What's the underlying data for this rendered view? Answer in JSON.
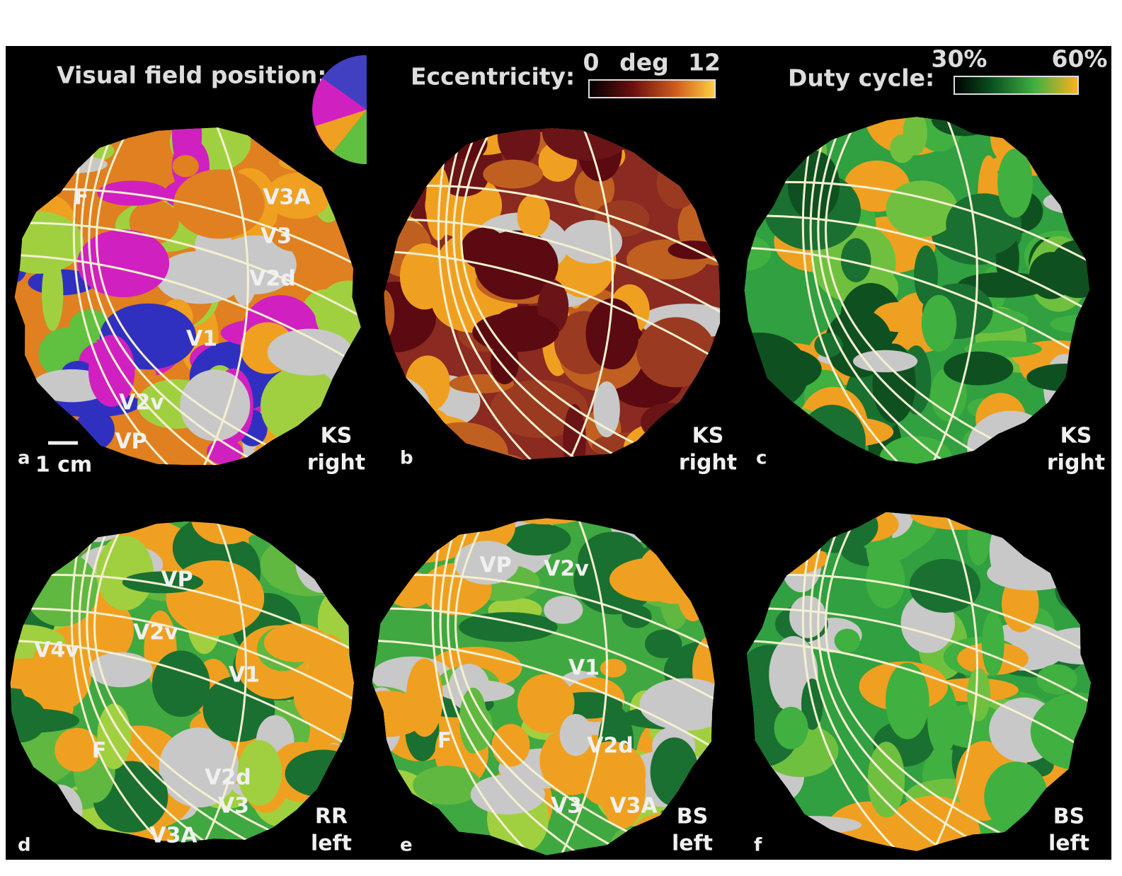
{
  "legends": {
    "position": {
      "title": "Visual field position:"
    },
    "eccentricity": {
      "title": "Eccentricity:",
      "min": "0",
      "unit": "deg",
      "max": "12"
    },
    "duty": {
      "title": "Duty cycle:",
      "min": "30%",
      "max": "60%"
    }
  },
  "panels": [
    {
      "letter": "a",
      "subject": "KS",
      "hemisphere": "right",
      "areas": [
        "F",
        "V3A",
        "V3",
        "V2d",
        "V1",
        "V2v",
        "VP"
      ],
      "scale": "1 cm"
    },
    {
      "letter": "b",
      "subject": "KS",
      "hemisphere": "right",
      "areas": []
    },
    {
      "letter": "c",
      "subject": "KS",
      "hemisphere": "right",
      "areas": []
    },
    {
      "letter": "d",
      "subject": "RR",
      "hemisphere": "left",
      "areas": [
        "V4v",
        "V2v",
        "VP",
        "V1",
        "F",
        "V2d",
        "V3",
        "V3A"
      ]
    },
    {
      "letter": "e",
      "subject": "BS",
      "hemisphere": "left",
      "areas": [
        "VP",
        "V2v",
        "V1",
        "F",
        "V2d",
        "V3",
        "V3A"
      ]
    },
    {
      "letter": "f",
      "subject": "BS",
      "hemisphere": "left",
      "areas": []
    }
  ]
}
